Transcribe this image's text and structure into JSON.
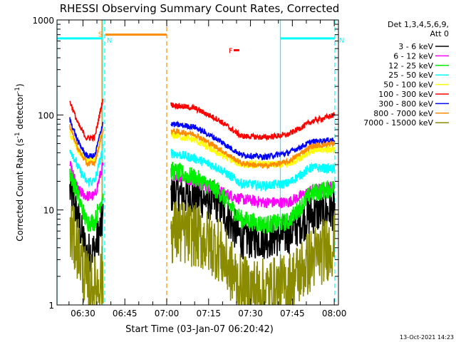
{
  "chart_data": {
    "type": "line",
    "title": "RHESSI Observing Summary Count Rates, Corrected",
    "xlabel": "Start Time (03-Jan-07 06:20:42)",
    "ylabel_main": "Corrected Count Rate (s",
    "ylabel_sup1": "-1",
    "ylabel_mid": " detector",
    "ylabel_sup2": "-1",
    "ylabel_end": ")",
    "y_scale": "log",
    "ylim": [
      1,
      1000
    ],
    "xlim_minutes": [
      380.7,
      481.5
    ],
    "y_ticks": [
      {
        "v": 1,
        "label": "1"
      },
      {
        "v": 10,
        "label": "10"
      },
      {
        "v": 100,
        "label": "100"
      },
      {
        "v": 1000,
        "label": "1000"
      }
    ],
    "x_ticks": [
      {
        "v": 390,
        "label": "06:30"
      },
      {
        "v": 405,
        "label": "06:45"
      },
      {
        "v": 420,
        "label": "07:00"
      },
      {
        "v": 435,
        "label": "07:15"
      },
      {
        "v": 450,
        "label": "07:30"
      },
      {
        "v": 465,
        "label": "07:45"
      },
      {
        "v": 480,
        "label": "08:00"
      }
    ],
    "legend_title": [
      "Det 1,3,4,5,6,9,",
      "Att 0"
    ],
    "legend_position": "right",
    "series": [
      {
        "name": "3 - 6 keV",
        "color": "#000000",
        "seg1": [
          16,
          8,
          3.5,
          3.8,
          8
        ],
        "seg2": [
          15,
          14,
          12,
          5,
          5,
          5.5,
          9,
          10
        ],
        "noise": 0.22
      },
      {
        "name": "6 - 12 keV",
        "color": "#ff00ff",
        "seg1": [
          30,
          16,
          14,
          14,
          30
        ],
        "seg2": [
          24,
          20,
          16,
          13,
          12,
          12,
          16,
          18
        ],
        "noise": 0.06
      },
      {
        "name": "12 - 25 keV",
        "color": "#00ee00",
        "seg1": [
          25,
          14,
          7.5,
          7.5,
          15
        ],
        "seg2": [
          26,
          22,
          16,
          8,
          7,
          7.5,
          15,
          17
        ],
        "noise": 0.1
      },
      {
        "name": "25 - 50 keV",
        "color": "#00ffff",
        "seg1": [
          45,
          28,
          20,
          20,
          45
        ],
        "seg2": [
          40,
          35,
          28,
          19,
          18,
          19,
          28,
          27
        ],
        "noise": 0.05
      },
      {
        "name": "50 - 100 keV",
        "color": "#ffff00",
        "seg1": [
          65,
          42,
          34,
          34,
          80
        ],
        "seg2": [
          62,
          55,
          40,
          30,
          30,
          30,
          42,
          44
        ],
        "noise": 0.04
      },
      {
        "name": "100 - 300 keV",
        "color": "#ff0000",
        "seg1": [
          140,
          80,
          57,
          58,
          150
        ],
        "seg2": [
          128,
          118,
          90,
          60,
          58,
          62,
          85,
          100
        ],
        "noise": 0.03
      },
      {
        "name": "300 - 800 keV",
        "color": "#0000ff",
        "seg1": [
          90,
          52,
          37,
          37,
          85
        ],
        "seg2": [
          80,
          75,
          55,
          38,
          36,
          40,
          52,
          55
        ],
        "noise": 0.03
      },
      {
        "name": "800 - 7000 keV",
        "color": "#ff8c00",
        "seg1": [
          75,
          44,
          31,
          31,
          70
        ],
        "seg2": [
          68,
          63,
          45,
          31,
          29,
          32,
          47,
          50
        ],
        "noise": 0.03
      },
      {
        "name": "7000 - 15000 keV",
        "color": "#8b8b00",
        "seg1": [
          6,
          4,
          1.7,
          1.5,
          2
        ],
        "seg2": [
          6,
          5.5,
          4,
          1.5,
          1.4,
          1.6,
          3,
          4.5
        ],
        "noise": 0.35
      }
    ],
    "time_windows": {
      "seg1": [
        385.3,
        397.2
      ],
      "seg2": [
        421.5,
        480.2
      ]
    },
    "markers": [
      {
        "label": "S",
        "color": "#ff8c00",
        "x": [
          398.0,
          420.0
        ],
        "y": 700
      },
      {
        "label": "N",
        "color": "#00ffff",
        "x": [
          380.7,
          397.0
        ],
        "y": 640
      },
      {
        "label": "N",
        "color": "#00ffff",
        "x": [
          460.7,
          480.2
        ],
        "y": 640
      },
      {
        "label": "F",
        "color": "#ff0000",
        "x": [
          444.0,
          446.0
        ],
        "y": 480
      }
    ],
    "vlines": [
      {
        "x": 380.7,
        "color": "#00ffff",
        "style": "solid"
      },
      {
        "x": 397.0,
        "color": "#00ffff",
        "style": "solid"
      },
      {
        "x": 397.8,
        "color": "#00ffff",
        "style": "dashed"
      },
      {
        "x": 396.8,
        "color": "#ff8c00",
        "style": "solid"
      },
      {
        "x": 420.0,
        "color": "#ff8c00",
        "style": "dashed"
      },
      {
        "x": 460.7,
        "color": "#00ffff",
        "style": "solid"
      },
      {
        "x": 480.2,
        "color": "#00ffff",
        "style": "dashed"
      }
    ]
  },
  "footer_timestamp": "13-Oct-2021 14:23"
}
